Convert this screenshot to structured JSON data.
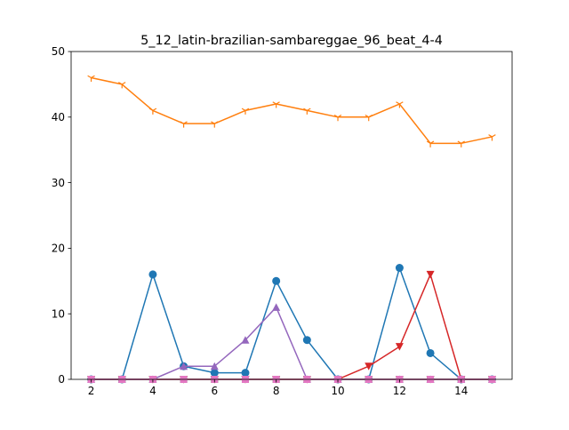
{
  "chart_data": {
    "type": "line",
    "title": "5_12_latin-brazilian-sambareggae_96_beat_4-4",
    "xlabel": "",
    "ylabel": "",
    "xlim": [
      1.35,
      15.65
    ],
    "ylim": [
      0,
      50
    ],
    "xticks": [
      2,
      4,
      6,
      8,
      10,
      12,
      14
    ],
    "yticks": [
      0,
      10,
      20,
      30,
      40,
      50
    ],
    "grid": false,
    "x": [
      2,
      3,
      4,
      5,
      6,
      7,
      8,
      9,
      10,
      11,
      12,
      13,
      14,
      15
    ],
    "series": [
      {
        "color": "#1f77b4",
        "marker": "circle",
        "values": [
          0,
          0,
          16,
          2,
          1,
          1,
          15,
          6,
          0,
          0,
          17,
          4,
          0,
          0
        ]
      },
      {
        "color": "#ff7f0e",
        "marker": "tri_down",
        "values": [
          46,
          45,
          41,
          39,
          39,
          41,
          42,
          41,
          40,
          40,
          42,
          36,
          36,
          37
        ]
      },
      {
        "color": "#2ca02c",
        "marker": "square",
        "values": [
          0,
          0,
          0,
          0,
          0,
          0,
          0,
          0,
          0,
          0,
          0,
          0,
          0,
          0
        ]
      },
      {
        "color": "#d62728",
        "marker": "triangle-down",
        "values": [
          0,
          0,
          0,
          0,
          0,
          0,
          0,
          0,
          0,
          2,
          5,
          16,
          0,
          0
        ]
      },
      {
        "color": "#9467bd",
        "marker": "triangle-up",
        "values": [
          0,
          0,
          0,
          2,
          2,
          6,
          11,
          0,
          0,
          0,
          0,
          0,
          0,
          0
        ]
      },
      {
        "color": "#8c564b",
        "marker": "triangle-down",
        "values": [
          0,
          0,
          0,
          0,
          0,
          0,
          0,
          0,
          0,
          0,
          0,
          0,
          0,
          0
        ]
      },
      {
        "color": "#e377c2",
        "marker": "square",
        "values": [
          0,
          0,
          0,
          0,
          0,
          0,
          0,
          0,
          0,
          0,
          0,
          0,
          0,
          0
        ]
      }
    ]
  }
}
